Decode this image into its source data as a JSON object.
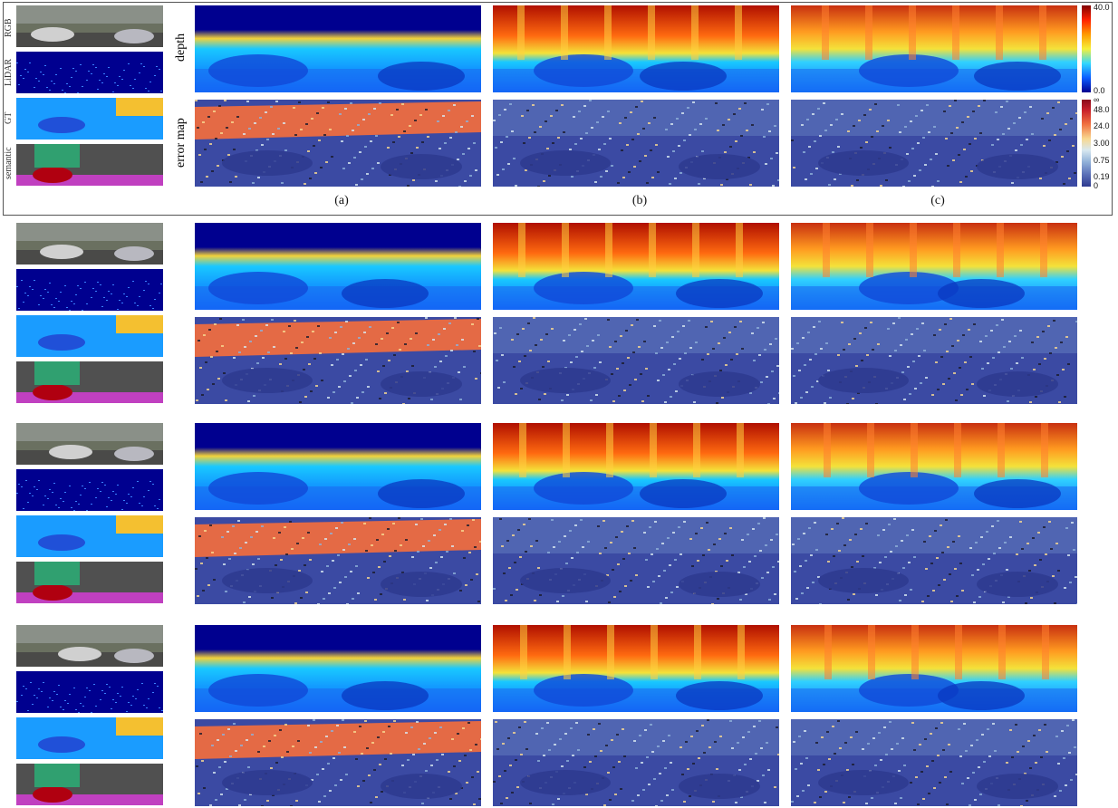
{
  "figure": {
    "thumb_labels": [
      "RGB",
      "LiDAR",
      "GT",
      "semantic"
    ],
    "row_labels": [
      "depth",
      "error map"
    ],
    "column_labels": [
      "(a)",
      "(b)",
      "(c)"
    ],
    "depth_colorbar": {
      "max": "40.0",
      "min": "0.0"
    },
    "error_colorbar": {
      "ticks": [
        "∞",
        "48.0",
        "24.0",
        "3.00",
        "0.75",
        "0.19",
        "0"
      ]
    }
  },
  "colors": {
    "deep_blue": "#00008f",
    "blue": "#0a5cff",
    "cyan": "#19c8ff",
    "yellow": "#f4e23a",
    "orange": "#ff7a1a",
    "red": "#c8100a",
    "err_base": "#3b4aa3",
    "err_high": "#e46a45"
  }
}
